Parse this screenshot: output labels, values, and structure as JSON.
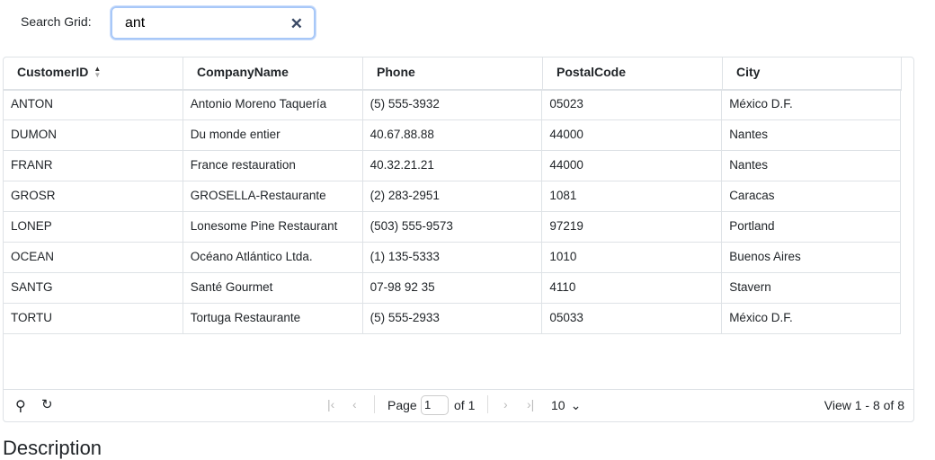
{
  "search": {
    "label": "Search Grid:",
    "value": "ant",
    "clear_icon": "close-icon"
  },
  "columns": [
    "CustomerID",
    "CompanyName",
    "Phone",
    "PostalCode",
    "City"
  ],
  "sort": {
    "column": "CustomerID",
    "icon": "sort-icon"
  },
  "rows": [
    [
      "ANTON",
      "Antonio Moreno Taquería",
      "(5) 555-3932",
      "05023",
      "México D.F."
    ],
    [
      "DUMON",
      "Du monde entier",
      "40.67.88.88",
      "44000",
      "Nantes"
    ],
    [
      "FRANR",
      "France restauration",
      "40.32.21.21",
      "44000",
      "Nantes"
    ],
    [
      "GROSR",
      "GROSELLA-Restaurante",
      "(2) 283-2951",
      "1081",
      "Caracas"
    ],
    [
      "LONEP",
      "Lonesome Pine Restaurant",
      "(503) 555-9573",
      "97219",
      "Portland"
    ],
    [
      "OCEAN",
      "Océano Atlántico Ltda.",
      "(1) 135-5333",
      "1010",
      "Buenos Aires"
    ],
    [
      "SANTG",
      "Santé Gourmet",
      "07-98 92 35",
      "4110",
      "Stavern"
    ],
    [
      "TORTU",
      "Tortuga Restaurante",
      "(5) 555-2933",
      "05033",
      "México D.F."
    ]
  ],
  "pager": {
    "page_label": "Page",
    "page": "1",
    "of_label": "of 1",
    "page_size": "10",
    "view": "View 1 - 8 of 8"
  },
  "description": "Description"
}
